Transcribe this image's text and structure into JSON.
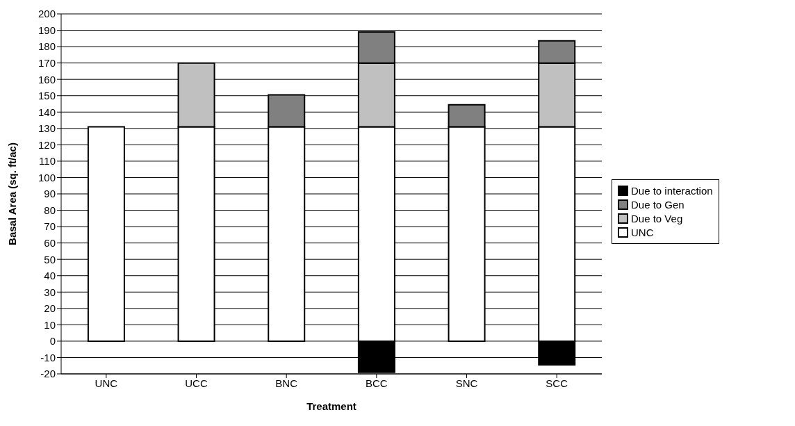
{
  "chart_data": {
    "type": "bar",
    "stacked": true,
    "xlabel": "Treatment",
    "ylabel": "Basal Area (sq. ft/ac)",
    "categories": [
      "UNC",
      "UCC",
      "BNC",
      "BCC",
      "SNC",
      "SCC"
    ],
    "series": [
      {
        "name": "UNC",
        "color": "#ffffff",
        "values": [
          131,
          131,
          131,
          131,
          131,
          131
        ]
      },
      {
        "name": "Due to Veg",
        "color": "#c0c0c0",
        "values": [
          0,
          39,
          0,
          39,
          0,
          39
        ]
      },
      {
        "name": "Due to Gen",
        "color": "#808080",
        "values": [
          0,
          0,
          19.5,
          19,
          13.5,
          13.5
        ]
      },
      {
        "name": "Due to interaction",
        "color": "#000000",
        "values": [
          0,
          0,
          0,
          -19,
          0,
          -14.5
        ]
      }
    ],
    "ylim": [
      -20,
      200
    ],
    "yticks": [
      -20,
      -10,
      0,
      10,
      20,
      30,
      40,
      50,
      60,
      70,
      80,
      90,
      100,
      110,
      120,
      130,
      140,
      150,
      160,
      170,
      180,
      190,
      200
    ],
    "grid": "y",
    "legend": "right"
  }
}
